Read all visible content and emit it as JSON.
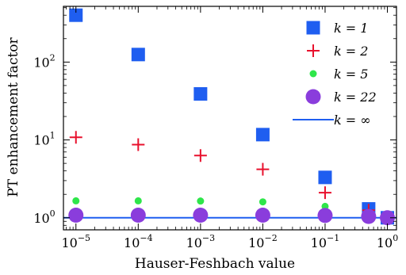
{
  "chart_data": {
    "type": "scatter",
    "xlabel": "Hauser-Feshbach value",
    "ylabel": "PT enhancement factor",
    "xscale": "log",
    "yscale": "log",
    "xlim": [
      6.3e-06,
      1.4
    ],
    "ylim": [
      0.7,
      520
    ],
    "xticks": [
      {
        "value": 1e-05,
        "base": "10",
        "exp": "−5"
      },
      {
        "value": 0.0001,
        "base": "10",
        "exp": "−4"
      },
      {
        "value": 0.001,
        "base": "10",
        "exp": "−3"
      },
      {
        "value": 0.01,
        "base": "10",
        "exp": "−2"
      },
      {
        "value": 0.1,
        "base": "10",
        "exp": "−1"
      },
      {
        "value": 1,
        "base": "10",
        "exp": "0"
      }
    ],
    "yticks": [
      {
        "value": 1,
        "base": "10",
        "exp": "0"
      },
      {
        "value": 10,
        "base": "10",
        "exp": "1"
      },
      {
        "value": 100,
        "base": "10",
        "exp": "2"
      }
    ],
    "legend_position": "top-right",
    "grid": false,
    "series": [
      {
        "name": "k = 1",
        "marker": "square",
        "color": "#1f5ef0",
        "x": [
          1e-05,
          0.0001,
          0.001,
          0.01,
          0.1,
          0.5,
          1
        ],
        "y": [
          400,
          125,
          39,
          11.7,
          3.3,
          1.3,
          1.0
        ]
      },
      {
        "name": "k = 2",
        "marker": "plus",
        "color": "#e8112d",
        "x": [
          1e-05,
          0.0001,
          0.001,
          0.01,
          0.1,
          0.5,
          1
        ],
        "y": [
          10.8,
          8.7,
          6.3,
          4.2,
          2.1,
          1.25,
          1.0
        ]
      },
      {
        "name": "k = 5",
        "marker": "small-circle",
        "color": "#2ee64a",
        "x": [
          1e-05,
          0.0001,
          0.001,
          0.01,
          0.1,
          0.5,
          1
        ],
        "y": [
          1.65,
          1.65,
          1.64,
          1.6,
          1.4,
          1.1,
          1.0
        ]
      },
      {
        "name": "k = 22",
        "marker": "large-circle",
        "color": "#8a3ddc",
        "x": [
          1e-05,
          0.0001,
          0.001,
          0.01,
          0.1,
          0.5,
          1
        ],
        "y": [
          1.08,
          1.08,
          1.08,
          1.08,
          1.07,
          1.04,
          1.0
        ]
      },
      {
        "name": "k = ∞",
        "marker": "line",
        "color": "#1f5ef0",
        "x": [
          6.3e-06,
          1.4
        ],
        "y": [
          1.0,
          1.0
        ]
      }
    ]
  }
}
